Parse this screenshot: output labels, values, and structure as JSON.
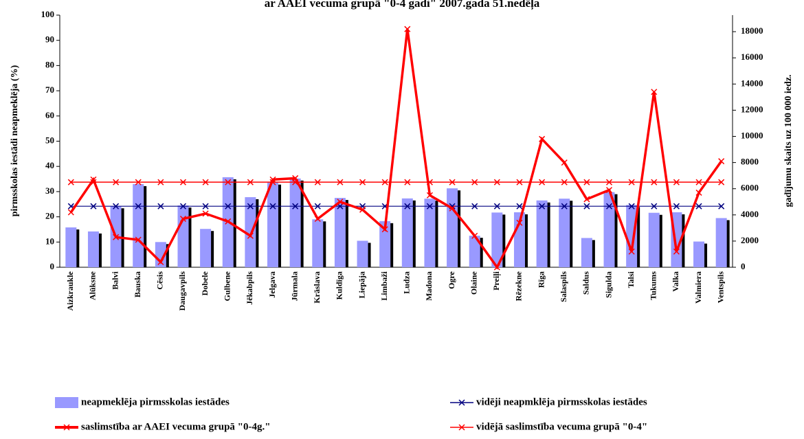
{
  "chart_data": {
    "type": "bar_line",
    "title": "ar AAEI vecuma grupā \"0-4 gadi\" 2007.gada 51.nedēļa",
    "y_label": "pirmsskolas iestādi neapmeklēja (%)",
    "y2_label": "gadījumu skaits uz 100 000 iedz.",
    "categories": [
      "Aizkraukle",
      "Alūksne",
      "Balvi",
      "Bauska",
      "Cēsis",
      "Daugavpils",
      "Dobele",
      "Gulbene",
      "Jēkabpils",
      "Jelgava",
      "Jūrmala",
      "Krāslava",
      "Kuldīga",
      "Liepāja",
      "Limbaži",
      "Ludza",
      "Madona",
      "Ogre",
      "Olaine",
      "Preiļi",
      "Rēzekne",
      "Rīga",
      "Salaspils",
      "Saldus",
      "Sigulda",
      "Talsi",
      "Tukums",
      "Valka",
      "Valmiera",
      "Ventspils"
    ],
    "bars": {
      "name": "neapmeklēja pirmsskolas iestādes",
      "color": "#9999ff",
      "values": [
        15.8,
        14.2,
        24.2,
        33,
        10,
        24.5,
        15.2,
        35.7,
        27.8,
        33.6,
        35.2,
        19,
        27.5,
        10.5,
        18.3,
        27.3,
        27.2,
        31.3,
        12.5,
        21.7,
        21.8,
        26.5,
        27.2,
        11.6,
        29.8,
        24.7,
        21.6,
        21.8,
        10.2,
        19.5
      ]
    },
    "line": {
      "name": "saslimstība ar AAEI vecuma grupā \"0-4g.\"",
      "color": "#ff0000",
      "axis": "y2",
      "values": [
        4200,
        6700,
        2300,
        2100,
        400,
        3700,
        4100,
        3500,
        2400,
        6700,
        6800,
        3700,
        5000,
        4400,
        2900,
        18200,
        5500,
        4500,
        2400,
        0,
        3400,
        9800,
        8000,
        5200,
        5900,
        1200,
        13400,
        1200,
        5700,
        8100
      ]
    },
    "avg_bars": {
      "name": "vidēji neapmklēja pirmsskolas iestādes",
      "color": "#000080",
      "value": 24.2
    },
    "avg_line": {
      "name": "vidējā saslimstība vecuma grupā \"0-4\"",
      "color": "#ff0000",
      "axis": "y2",
      "value": 6500
    },
    "ylim": [
      0,
      100
    ],
    "yticks": [
      0,
      10,
      20,
      30,
      40,
      50,
      60,
      70,
      80,
      90,
      100
    ],
    "y2lim": [
      0,
      19265
    ],
    "y2ticks": [
      0,
      2000,
      4000,
      6000,
      8000,
      10000,
      12000,
      14000,
      16000,
      18000
    ]
  }
}
